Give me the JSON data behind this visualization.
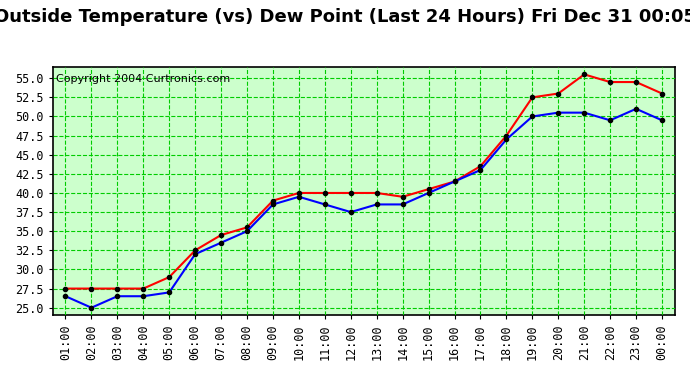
{
  "title": "Outside Temperature (vs) Dew Point (Last 24 Hours) Fri Dec 31 00:05",
  "copyright": "Copyright 2004 Curtronics.com",
  "background_color": "#ffffff",
  "plot_background": "#ccffcc",
  "grid_color": "#00cc00",
  "x_labels": [
    "01:00",
    "02:00",
    "03:00",
    "04:00",
    "05:00",
    "06:00",
    "07:00",
    "08:00",
    "09:00",
    "10:00",
    "11:00",
    "12:00",
    "13:00",
    "14:00",
    "15:00",
    "16:00",
    "17:00",
    "18:00",
    "19:00",
    "20:00",
    "21:00",
    "22:00",
    "23:00",
    "00:00"
  ],
  "ylim": [
    24.0,
    56.5
  ],
  "yticks": [
    25.0,
    27.5,
    30.0,
    32.5,
    35.0,
    37.5,
    40.0,
    42.5,
    45.0,
    47.5,
    50.0,
    52.5,
    55.0
  ],
  "red_line": [
    27.5,
    27.5,
    27.5,
    27.5,
    29.0,
    32.5,
    34.5,
    35.5,
    39.0,
    40.0,
    40.0,
    40.0,
    40.0,
    39.5,
    40.5,
    41.5,
    43.5,
    47.5,
    52.5,
    53.0,
    55.5,
    54.5,
    54.5,
    53.0
  ],
  "blue_line": [
    26.5,
    25.0,
    26.5,
    26.5,
    27.0,
    32.0,
    33.5,
    35.0,
    38.5,
    39.5,
    38.5,
    37.5,
    38.5,
    38.5,
    40.0,
    41.5,
    43.0,
    47.0,
    50.0,
    50.5,
    50.5,
    49.5,
    51.0,
    49.5
  ],
  "red_color": "#ff0000",
  "blue_color": "#0000ff",
  "marker_color": "#000000",
  "title_fontsize": 13,
  "tick_fontsize": 8.5,
  "copyright_fontsize": 8
}
